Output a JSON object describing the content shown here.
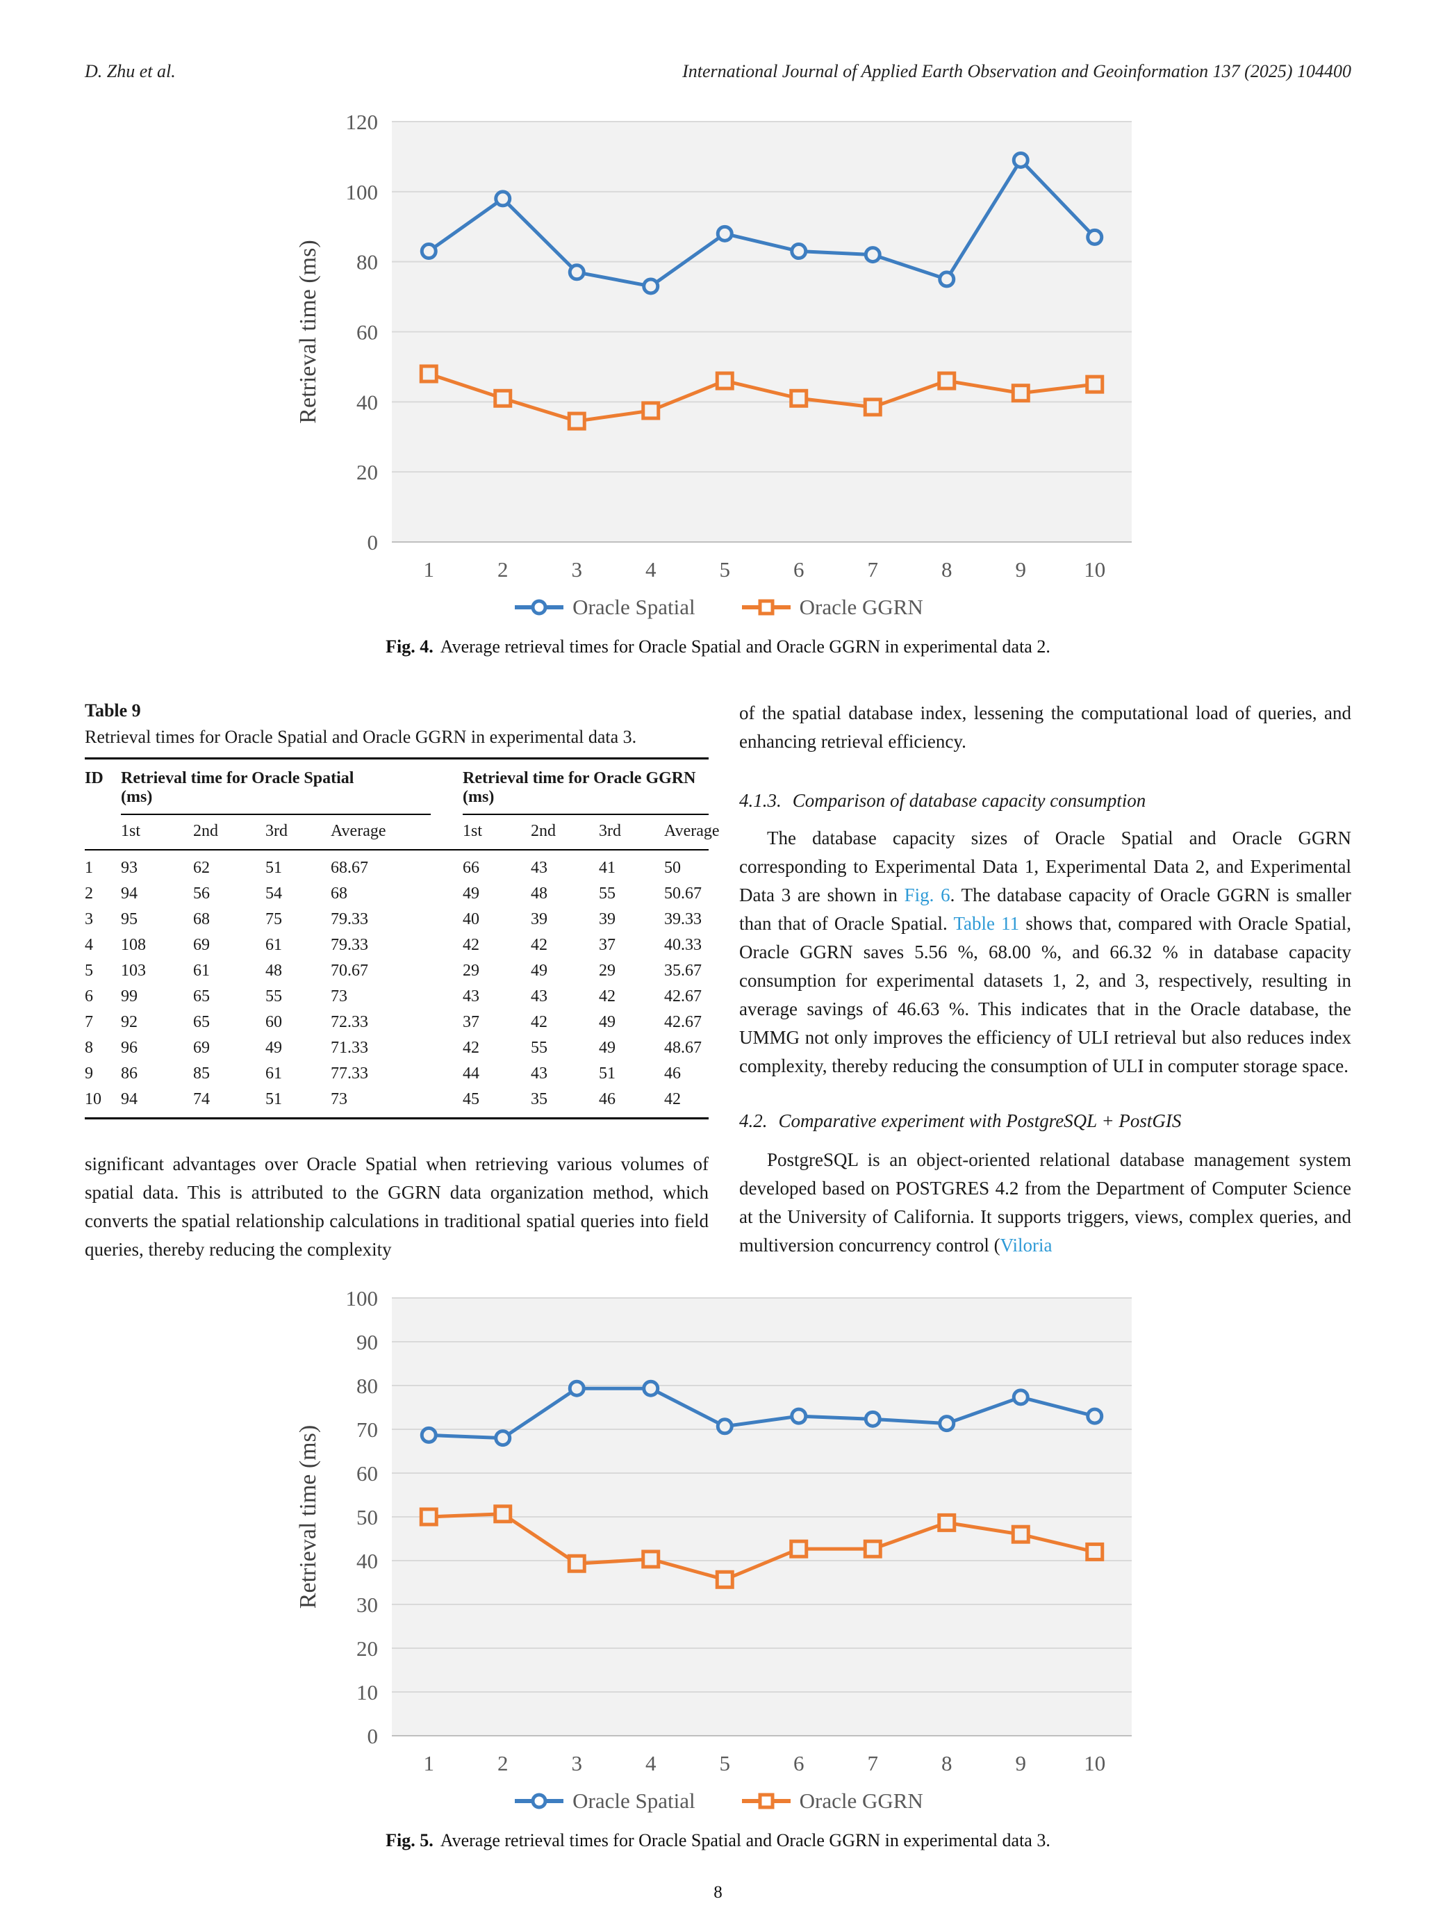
{
  "header": {
    "authors": "D. Zhu et al.",
    "journal": "International Journal of Applied Earth Observation and Geoinformation 137 (2025) 104400"
  },
  "colors": {
    "series_blue": "#3E7EC1",
    "series_orange": "#ED7D31",
    "link": "#2E9AD6",
    "grid": "#D9D9D9",
    "axis_line": "#BFBFBF",
    "plot_bg": "#F2F2F2",
    "tick_text": "#595959"
  },
  "chart_data": [
    {
      "id": "fig4",
      "type": "line",
      "title": "",
      "xlabel": "",
      "ylabel": "Retrieval time (ms)",
      "x": [
        1,
        2,
        3,
        4,
        5,
        6,
        7,
        8,
        9,
        10
      ],
      "ylim": [
        0,
        120
      ],
      "ytick_step": 20,
      "grid": true,
      "legend_position": "bottom",
      "series": [
        {
          "name": "Oracle Spatial",
          "marker": "circle",
          "values": [
            83,
            98,
            77,
            73,
            88,
            83,
            82,
            75,
            109,
            87
          ]
        },
        {
          "name": "Oracle GGRN",
          "marker": "square",
          "values": [
            48,
            41,
            34.5,
            37.5,
            46,
            41,
            38.5,
            46,
            42.5,
            45
          ]
        }
      ],
      "caption_label": "Fig. 4.",
      "caption_text": "Average retrieval times for Oracle Spatial and Oracle GGRN in experimental data 2."
    },
    {
      "id": "fig5",
      "type": "line",
      "title": "",
      "xlabel": "",
      "ylabel": "Retrieval time (ms)",
      "x": [
        1,
        2,
        3,
        4,
        5,
        6,
        7,
        8,
        9,
        10
      ],
      "ylim": [
        0,
        100
      ],
      "ytick_step": 10,
      "grid": true,
      "legend_position": "bottom",
      "series": [
        {
          "name": "Oracle Spatial",
          "marker": "circle",
          "values": [
            68.67,
            68,
            79.33,
            79.33,
            70.67,
            73,
            72.33,
            71.33,
            77.33,
            73
          ]
        },
        {
          "name": "Oracle GGRN",
          "marker": "square",
          "values": [
            50,
            50.67,
            39.33,
            40.33,
            35.67,
            42.67,
            42.67,
            48.67,
            46,
            42
          ]
        }
      ],
      "caption_label": "Fig. 5.",
      "caption_text": "Average retrieval times for Oracle Spatial and Oracle GGRN in experimental data 3."
    }
  ],
  "table9": {
    "label": "Table 9",
    "caption": "Retrieval times for Oracle Spatial and Oracle GGRN in experimental data 3.",
    "col_id": "ID",
    "group1": "Retrieval time for Oracle Spatial\n(ms)",
    "group2": "Retrieval time for Oracle GGRN\n(ms)",
    "subheaders": [
      "1st",
      "2nd",
      "3rd",
      "Average"
    ],
    "rows": [
      [
        "1",
        "93",
        "62",
        "51",
        "68.67",
        "66",
        "43",
        "41",
        "50"
      ],
      [
        "2",
        "94",
        "56",
        "54",
        "68",
        "49",
        "48",
        "55",
        "50.67"
      ],
      [
        "3",
        "95",
        "68",
        "75",
        "79.33",
        "40",
        "39",
        "39",
        "39.33"
      ],
      [
        "4",
        "108",
        "69",
        "61",
        "79.33",
        "42",
        "42",
        "37",
        "40.33"
      ],
      [
        "5",
        "103",
        "61",
        "48",
        "70.67",
        "29",
        "49",
        "29",
        "35.67"
      ],
      [
        "6",
        "99",
        "65",
        "55",
        "73",
        "43",
        "43",
        "42",
        "42.67"
      ],
      [
        "7",
        "92",
        "65",
        "60",
        "72.33",
        "37",
        "42",
        "49",
        "42.67"
      ],
      [
        "8",
        "96",
        "69",
        "49",
        "71.33",
        "42",
        "55",
        "49",
        "48.67"
      ],
      [
        "9",
        "86",
        "85",
        "61",
        "77.33",
        "44",
        "43",
        "51",
        "46"
      ],
      [
        "10",
        "94",
        "74",
        "51",
        "73",
        "45",
        "35",
        "46",
        "42"
      ]
    ]
  },
  "body": {
    "left_paragraph": "significant advantages over Oracle Spatial when retrieving various volumes of spatial data. This is attributed to the GGRN data organization method, which converts the spatial relationship calculations in traditional spatial queries into field queries, thereby reducing the complexity",
    "right": {
      "para1": "of the spatial database index, lessening the computational load of queries, and enhancing retrieval efficiency.",
      "heading_413_num": "4.1.3.",
      "heading_413_title": "Comparison of database capacity consumption",
      "para2_segments": [
        {
          "text": "The database capacity sizes of Oracle Spatial and Oracle GGRN corresponding to Experimental Data 1, Experimental Data 2, and Experimental Data 3 are shown in "
        },
        {
          "text": "Fig. 6",
          "link": true
        },
        {
          "text": ". The database capacity of Oracle GGRN is smaller than that of Oracle Spatial. "
        },
        {
          "text": "Table 11",
          "link": true
        },
        {
          "text": " shows that, compared with Oracle Spatial, Oracle GGRN saves 5.56 %, 68.00 %, and 66.32 % in database capacity consumption for experimental datasets 1, 2, and 3, respectively, resulting in average savings of 46.63 %. This indicates that in the Oracle database, the UMMG not only improves the efficiency of ULI retrieval but also reduces index complexity, thereby reducing the consumption of ULI in computer storage space."
        }
      ],
      "heading_42_num": "4.2.",
      "heading_42_title": "Comparative experiment with PostgreSQL + PostGIS",
      "para3_segments": [
        {
          "text": "PostgreSQL is an object-oriented relational database management system developed based on POSTGRES 4.2 from the Department of Computer Science at the University of California. It supports triggers, views, complex queries, and multiversion concurrency control ("
        },
        {
          "text": "Viloria",
          "link": true
        }
      ]
    }
  },
  "footer": {
    "page_number": "8"
  }
}
